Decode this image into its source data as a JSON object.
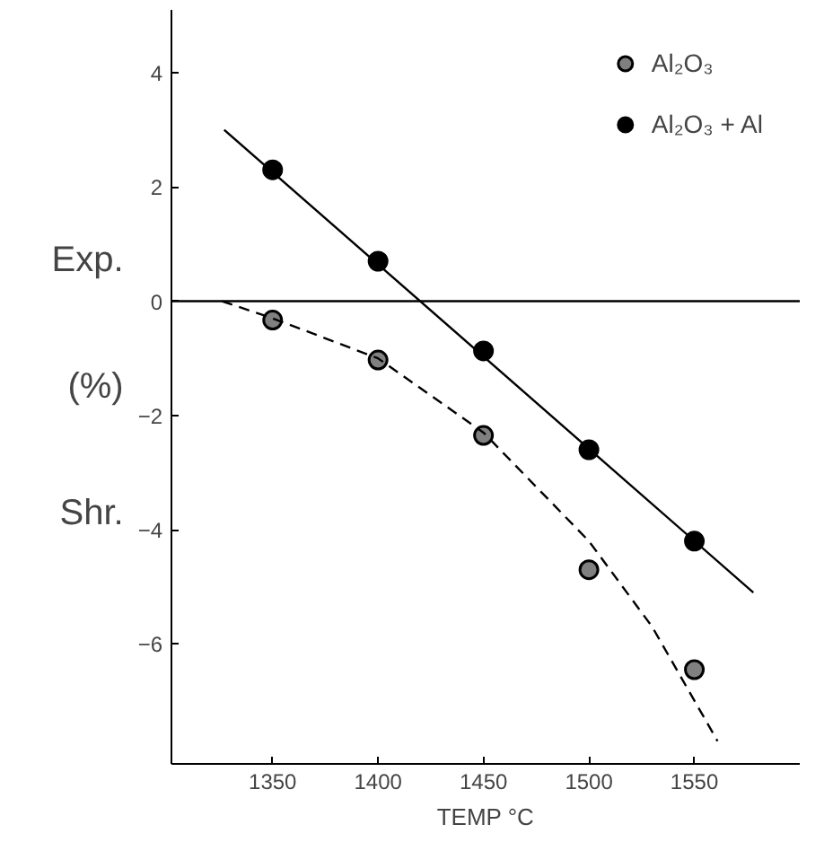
{
  "chart_data": {
    "type": "scatter",
    "xlabel": "TEMP °C",
    "ylabel": "Exp.\n(%)\nShr.",
    "xlim": [
      1302,
      1600
    ],
    "ylim": [
      -8.1,
      5.1
    ],
    "xticks": [
      1350,
      1400,
      1450,
      1500,
      1550
    ],
    "yticks": [
      -6,
      -4,
      -2,
      0,
      2,
      4
    ],
    "grid": false,
    "legend": "top right",
    "series": [
      {
        "name": "Al₂O₃",
        "color": "#808080",
        "marker": "circle",
        "x": [
          1350,
          1400,
          1450,
          1500,
          1550
        ],
        "values": [
          -0.33,
          -1.03,
          -2.35,
          -4.7,
          -6.45
        ]
      },
      {
        "name": "Al₂O₃ + Al",
        "color": "#000000",
        "marker": "circle",
        "x": [
          1350,
          1400,
          1450,
          1500,
          1550
        ],
        "values": [
          2.3,
          0.7,
          -0.87,
          -2.6,
          -4.2
        ]
      },
      {
        "color": "#000000",
        "type": "line",
        "marker": "none",
        "line_style": "solid",
        "x": [
          1327,
          1578
        ],
        "values": [
          3.0,
          -5.1
        ]
      },
      {
        "color": "#000000",
        "type": "line",
        "marker": "none",
        "line_style": "dashed",
        "x": [
          1326,
          1350,
          1400,
          1450,
          1500,
          1530,
          1561
        ],
        "values": [
          0,
          -0.3,
          -1.0,
          -2.3,
          -4.2,
          -5.7,
          -7.7
        ]
      }
    ],
    "ref_lines": [
      {
        "axis": "y",
        "value": 0,
        "color": "#000000",
        "line_style": "solid"
      }
    ]
  }
}
